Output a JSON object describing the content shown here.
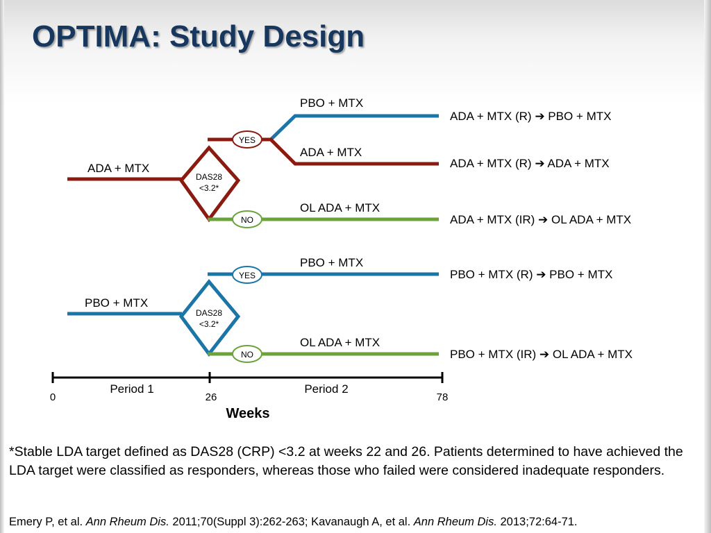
{
  "slide": {
    "title": "OPTIMA: Study Design"
  },
  "colors": {
    "title": "#17375e",
    "ada_mtx": "#8b1a10",
    "pbo_mtx": "#1b75a7",
    "ol_ada": "#6ba33a"
  },
  "diagram": {
    "arm1": {
      "start_label": "ADA + MTX",
      "decision": [
        "DAS28",
        "<3.2*"
      ],
      "yes": "YES",
      "no": "NO",
      "branches": [
        {
          "label": "PBO + MTX",
          "outcome": "ADA + MTX (R) ➔ PBO + MTX"
        },
        {
          "label": "ADA + MTX",
          "outcome": "ADA + MTX (R) ➔ ADA + MTX"
        },
        {
          "label": "OL ADA + MTX",
          "outcome": "ADA + MTX (IR) ➔ OL ADA + MTX"
        }
      ]
    },
    "arm2": {
      "start_label": "PBO + MTX",
      "decision": [
        "DAS28",
        "<3.2*"
      ],
      "yes": "YES",
      "no": "NO",
      "branches": [
        {
          "label": "PBO + MTX",
          "outcome": "PBO + MTX (R) ➔ PBO + MTX"
        },
        {
          "label": "OL ADA + MTX",
          "outcome": "PBO + MTX (IR) ➔ OL ADA + MTX"
        }
      ]
    },
    "timeline": {
      "period1": "Period 1",
      "period2": "Period 2",
      "ticks": [
        "0",
        "26",
        "78"
      ],
      "unit": "Weeks"
    }
  },
  "footnote": "*Stable LDA target defined as DAS28 (CRP) <3.2 at weeks 22 and 26. Patients determined to have achieved the LDA target were classified as responders, whereas those who failed were considered inadequate responders.",
  "citation": {
    "part1": "Emery P, et al. ",
    "journal1": "Ann Rheum Dis.",
    "part2": " 2011;70(Suppl 3):262-263; Kavanaugh A, et al. ",
    "journal2": "Ann Rheum Dis.",
    "part3": " 2013;72:64-71."
  }
}
